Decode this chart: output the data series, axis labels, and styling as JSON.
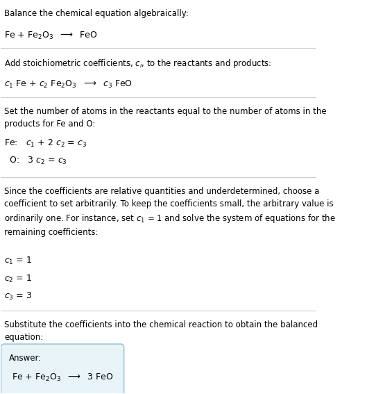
{
  "bg_color": "#ffffff",
  "text_color": "#000000",
  "section1_title": "Balance the chemical equation algebraically:",
  "section1_eq": "Fe + Fe$_2$O$_3$  $\\longrightarrow$  FeO",
  "section2_title": "Add stoichiometric coefficients, $c_i$, to the reactants and products:",
  "section2_eq": "$c_1$ Fe + $c_2$ Fe$_2$O$_3$  $\\longrightarrow$  $c_3$ FeO",
  "section3_title": "Set the number of atoms in the reactants equal to the number of atoms in the\nproducts for Fe and O:",
  "section3_fe": "Fe:   $c_1$ + 2 $c_2$ = $c_3$",
  "section3_o": "  O:   3 $c_2$ = $c_3$",
  "section4_title": "Since the coefficients are relative quantities and underdetermined, choose a\ncoefficient to set arbitrarily. To keep the coefficients small, the arbitrary value is\nordinarily one. For instance, set $c_1$ = 1 and solve the system of equations for the\nremaining coefficients:",
  "section4_c1": "$c_1$ = 1",
  "section4_c2": "$c_2$ = 1",
  "section4_c3": "$c_3$ = 3",
  "section5_title": "Substitute the coefficients into the chemical reaction to obtain the balanced\nequation:",
  "answer_label": "Answer:",
  "answer_eq": "Fe + Fe$_2$O$_3$  $\\longrightarrow$  3 FeO",
  "answer_box_color": "#e8f4f8",
  "answer_box_border": "#a0c8d8",
  "divider_color": "#cccccc"
}
